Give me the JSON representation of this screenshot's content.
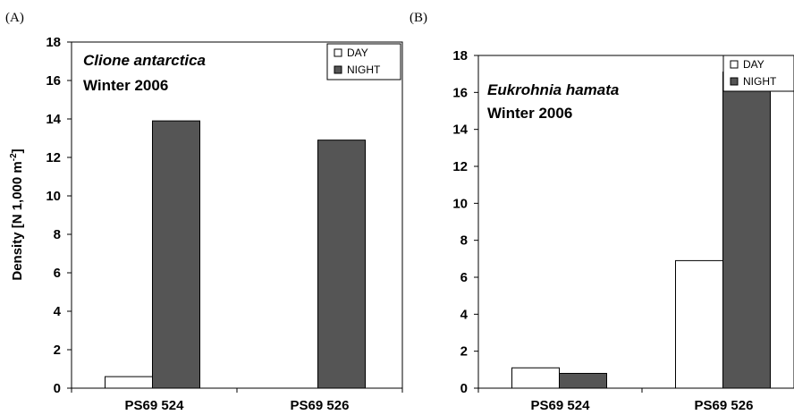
{
  "figure": {
    "ylabel_main": "Density [N  1,000 m",
    "ylabel_sup": "-2",
    "ylabel_end": "]"
  },
  "chart_data": [
    {
      "panel": "(A)",
      "type": "bar",
      "title_species": "Clione antarctica",
      "title_season": "Winter 2006",
      "categories": [
        "PS69  524",
        "PS69  526"
      ],
      "series": [
        {
          "name": "DAY",
          "values": [
            0.6,
            0
          ],
          "color": "#ffffff"
        },
        {
          "name": "NIGHT",
          "values": [
            13.9,
            12.9
          ],
          "color": "#555555"
        }
      ],
      "ylim": [
        0,
        18
      ],
      "yticks": [
        "0",
        "2",
        "4",
        "6",
        "8",
        "10",
        "12",
        "14",
        "16",
        "18"
      ],
      "ylabel": "Density [N  1,000 m-2]",
      "legend": "top-right"
    },
    {
      "panel": "(B)",
      "type": "bar",
      "title_species": "Eukrohnia hamata",
      "title_season": "Winter 2006",
      "categories": [
        "PS69  524",
        "PS69  526"
      ],
      "series": [
        {
          "name": "DAY",
          "values": [
            1.1,
            6.9
          ],
          "color": "#ffffff"
        },
        {
          "name": "NIGHT",
          "values": [
            0.8,
            17.1
          ],
          "color": "#555555"
        }
      ],
      "ylim": [
        0,
        18
      ],
      "yticks": [
        "0",
        "2",
        "4",
        "6",
        "8",
        "10",
        "12",
        "14",
        "16",
        "18"
      ],
      "ylabel": "",
      "legend": "top-right"
    }
  ]
}
